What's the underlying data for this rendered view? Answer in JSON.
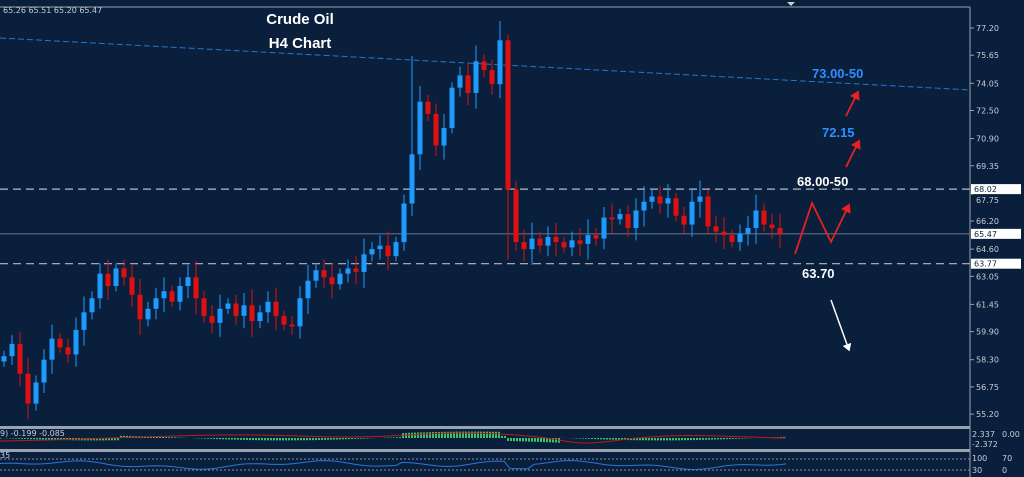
{
  "ohlc_readout": "65.26 65.51 65.20 65.47",
  "title_line1": "Crude Oil",
  "title_line2": "H4 Chart",
  "colors": {
    "background": "#0a1f3c",
    "up": "#1e9bff",
    "down": "#e01010",
    "trendline": "#1f78d1",
    "level": "#b8bcc4",
    "arrow_red": "#e82020",
    "arrow_white": "#ffffff",
    "annotation_blue": "#2e8fff"
  },
  "annotations": {
    "target_high": "73.00-50",
    "target_mid": "72.15",
    "resistance": "68.00-50",
    "support": "63.70"
  },
  "price_badges": {
    "resistance": "68.02",
    "current": "65.47",
    "support": "63.77"
  },
  "macd": {
    "label": "9) -0.199 -0.085",
    "axis": [
      "2.337",
      "0.00",
      "-2.372"
    ]
  },
  "rsi": {
    "label": "35",
    "axis": [
      "100",
      "70",
      "30",
      "0"
    ]
  },
  "chart_data": {
    "type": "candlestick",
    "yaxis_ticks": [
      "77.20",
      "75.65",
      "74.05",
      "72.50",
      "70.90",
      "69.35",
      "67.75",
      "66.20",
      "64.60",
      "63.05",
      "61.45",
      "59.90",
      "58.30",
      "56.75",
      "55.20"
    ],
    "ylim": [
      54.5,
      78.8
    ],
    "grid": false,
    "close": [
      58.5,
      59.2,
      57.5,
      55.8,
      57,
      58.3,
      59.5,
      59,
      58.6,
      60,
      61,
      61.8,
      63.2,
      62.5,
      63.5,
      63,
      62,
      60.6,
      61.2,
      61.8,
      62.2,
      61.6,
      62.5,
      63,
      61.8,
      60.8,
      60.4,
      61.2,
      61.5,
      60.8,
      61.4,
      60.5,
      61,
      61.6,
      60.8,
      60.3,
      60.2,
      61.8,
      62.8,
      63.4,
      63,
      62.6,
      63.2,
      63.5,
      63.3,
      64.3,
      64.6,
      64.8,
      64.2,
      65,
      67.2,
      70,
      73,
      72.3,
      70.5,
      71.5,
      73.8,
      74.5,
      73.5,
      75.3,
      74.8,
      74,
      76.5,
      68,
      65,
      64.6,
      65.2,
      64.8,
      65.3,
      65,
      64.7,
      65.1,
      64.9,
      65.4,
      65.2,
      66.4,
      66.3,
      66.6,
      65.8,
      66.8,
      67.3,
      67.6,
      67.2,
      67.5,
      66.5,
      66,
      67.3,
      67.6,
      65.9,
      65.6,
      65.4,
      65,
      65.5,
      65.8,
      66.8,
      66,
      65.8,
      65.47
    ],
    "levels": {
      "resistance": 68.02,
      "current": 65.47,
      "support": 63.77
    },
    "trendline": [
      76.63,
      73.67
    ]
  }
}
